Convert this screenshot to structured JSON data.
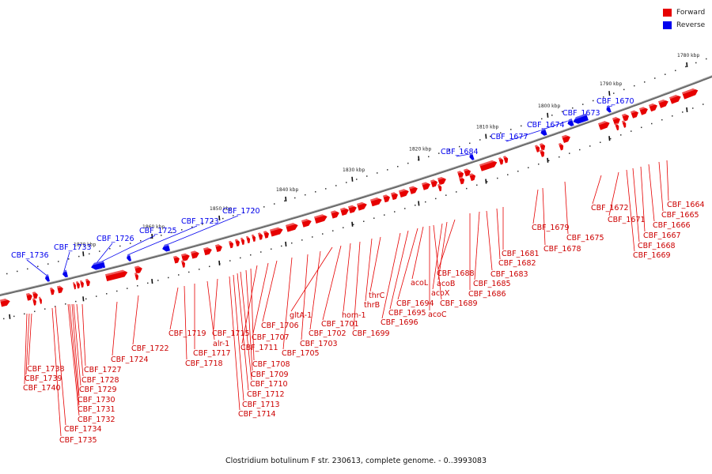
{
  "legend": {
    "forward": {
      "label": "Forward",
      "color": "#e60000"
    },
    "reverse": {
      "label": "Reverse",
      "color": "#0000ee"
    }
  },
  "caption": "Clostridium botulinum F str. 230613, complete genome. - 0..3993083",
  "ruler_labels": [
    "1780 kbp",
    "1790 kbp",
    "1800 kbp",
    "1810 kbp",
    "1820 kbp",
    "1830 kbp",
    "1840 kbp",
    "1850 kbp",
    "1860 kbp",
    "1870 kbp"
  ],
  "reverse_genes": [
    "CBF_1670",
    "CBF_1673",
    "CBF_1674",
    "CBF_1677",
    "CBF_1684",
    "CBF_1720",
    "CBF_1723",
    "CBF_1725",
    "CBF_1726",
    "CBF_1733",
    "CBF_1736"
  ],
  "forward_genes": [
    "CBF_1664",
    "CBF_1665",
    "CBF_1666",
    "CBF_1667",
    "CBF_1668",
    "CBF_1669",
    "CBF_1671",
    "CBF_1672",
    "CBF_1675",
    "CBF_1678",
    "CBF_1679",
    "CBF_1681",
    "CBF_1682",
    "CBF_1683",
    "CBF_1685",
    "CBF_1686",
    "CBF_1688",
    "acoB",
    "acoX",
    "CBF_1689",
    "acoL",
    "acoC",
    "CBF_1694",
    "CBF_1695",
    "CBF_1696",
    "thrC",
    "thrB",
    "CBF_1699",
    "hom-1",
    "CBF_1701",
    "gltA-1",
    "CBF_1702",
    "CBF_1703",
    "CBF_1705",
    "CBF_1706",
    "CBF_1707",
    "CBF_1711",
    "CBF_1708",
    "CBF_1709",
    "CBF_1710",
    "CBF_1712",
    "CBF_1713",
    "CBF_1714",
    "CBF_1715",
    "alr-1",
    "CBF_1717",
    "CBF_1718",
    "CBF_1719",
    "CBF_1722",
    "CBF_1724",
    "CBF_1727",
    "CBF_1728",
    "CBF_1729",
    "CBF_1730",
    "CBF_1731",
    "CBF_1732",
    "CBF_1734",
    "CBF_1735",
    "CBF_1738",
    "CBF_1739",
    "CBF_1740"
  ]
}
